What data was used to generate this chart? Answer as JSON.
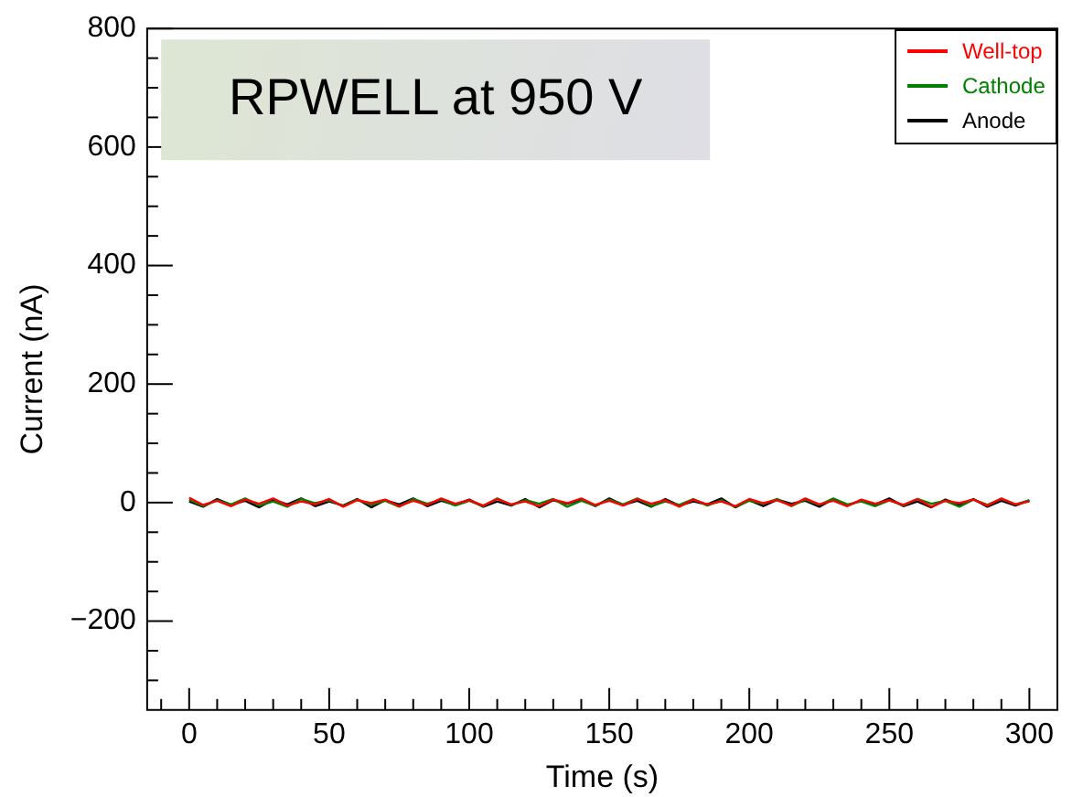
{
  "chart_data": {
    "type": "line",
    "title": "RPWELL at 950 V",
    "xlabel": "Time (s)",
    "ylabel": "Current (nA)",
    "x": [
      0,
      5,
      10,
      15,
      20,
      25,
      30,
      35,
      40,
      45,
      50,
      55,
      60,
      65,
      70,
      75,
      80,
      85,
      90,
      95,
      100,
      105,
      110,
      115,
      120,
      125,
      130,
      135,
      140,
      145,
      150,
      155,
      160,
      165,
      170,
      175,
      180,
      185,
      190,
      195,
      200,
      205,
      210,
      215,
      220,
      225,
      230,
      235,
      240,
      245,
      250,
      255,
      260,
      265,
      270,
      275,
      280,
      285,
      290,
      295,
      300
    ],
    "series": [
      {
        "name": "Well-top",
        "color": "#ff0000",
        "values": [
          8,
          -4,
          3,
          -6,
          5,
          -2,
          7,
          -5,
          2,
          -3,
          6,
          -7,
          4,
          -1,
          5,
          -6,
          3,
          -4,
          7,
          -2,
          4,
          -5,
          6,
          -3,
          2,
          -6,
          5,
          -1,
          7,
          -4,
          3,
          -5,
          6,
          -2,
          4,
          -7,
          5,
          -3,
          2,
          -6,
          6,
          -1,
          4,
          -5,
          7,
          -3,
          3,
          -6,
          5,
          -2,
          4,
          -4,
          6,
          -7,
          3,
          -1,
          5,
          -5,
          7,
          -3,
          2
        ]
      },
      {
        "name": "Cathode",
        "color": "#008000",
        "values": [
          5,
          -6,
          4,
          -3,
          7,
          -5,
          2,
          -7,
          6,
          -1,
          4,
          -6,
          5,
          -4,
          3,
          -7,
          6,
          -2,
          5,
          -5,
          3,
          -6,
          7,
          -4,
          4,
          -2,
          6,
          -7,
          3,
          -5,
          5,
          -3,
          7,
          -6,
          2,
          -4,
          6,
          -5,
          4,
          -7,
          3,
          -2,
          6,
          -6,
          5,
          -4,
          7,
          -3,
          2,
          -6,
          4,
          -5,
          6,
          -2,
          3,
          -7,
          5,
          -4,
          6,
          -3,
          4
        ]
      },
      {
        "name": "Anode",
        "color": "#000000",
        "values": [
          2,
          -7,
          6,
          -4,
          3,
          -8,
          5,
          -3,
          7,
          -6,
          2,
          -5,
          6,
          -8,
          4,
          -3,
          7,
          -6,
          3,
          -4,
          5,
          -7,
          2,
          -5,
          6,
          -8,
          4,
          -2,
          5,
          -6,
          7,
          -4,
          3,
          -7,
          6,
          -5,
          2,
          -3,
          7,
          -8,
          4,
          -6,
          5,
          -2,
          3,
          -7,
          6,
          -5,
          4,
          -3,
          7,
          -6,
          2,
          -8,
          5,
          -4,
          6,
          -7,
          3,
          -5,
          4
        ]
      }
    ],
    "xlim": [
      -15,
      310
    ],
    "ylim": [
      -350,
      800
    ],
    "xticks": [
      {
        "value": -10,
        "label": null
      },
      0,
      {
        "value": 10,
        "label": null
      },
      {
        "value": 20,
        "label": null
      },
      {
        "value": 30,
        "label": null
      },
      {
        "value": 40,
        "label": null
      },
      50,
      {
        "value": 60,
        "label": null
      },
      {
        "value": 70,
        "label": null
      },
      {
        "value": 80,
        "label": null
      },
      {
        "value": 90,
        "label": null
      },
      100,
      {
        "value": 110,
        "label": null
      },
      {
        "value": 120,
        "label": null
      },
      {
        "value": 130,
        "label": null
      },
      {
        "value": 140,
        "label": null
      },
      150,
      {
        "value": 160,
        "label": null
      },
      {
        "value": 170,
        "label": null
      },
      {
        "value": 180,
        "label": null
      },
      {
        "value": 190,
        "label": null
      },
      200,
      {
        "value": 210,
        "label": null
      },
      {
        "value": 220,
        "label": null
      },
      {
        "value": 230,
        "label": null
      },
      {
        "value": 240,
        "label": null
      },
      250,
      {
        "value": 260,
        "label": null
      },
      {
        "value": 270,
        "label": null
      },
      {
        "value": 280,
        "label": null
      },
      {
        "value": 290,
        "label": null
      },
      300
    ],
    "yticks": [
      {
        "value": -300,
        "label": null
      },
      {
        "value": -250,
        "label": null
      },
      -200,
      {
        "value": -150,
        "label": null
      },
      {
        "value": -100,
        "label": null
      },
      {
        "value": -50,
        "label": null
      },
      0,
      {
        "value": 50,
        "label": null
      },
      {
        "value": 100,
        "label": null
      },
      {
        "value": 150,
        "label": null
      },
      200,
      {
        "value": 250,
        "label": null
      },
      {
        "value": 300,
        "label": null
      },
      {
        "value": 350,
        "label": null
      },
      400,
      {
        "value": 450,
        "label": null
      },
      {
        "value": 500,
        "label": null
      },
      {
        "value": 550,
        "label": null
      },
      600,
      {
        "value": 650,
        "label": null
      },
      {
        "value": 700,
        "label": null
      },
      {
        "value": 750,
        "label": null
      },
      800
    ],
    "legend": "top right",
    "grid": false,
    "marker": "none",
    "line_style": "solid"
  }
}
